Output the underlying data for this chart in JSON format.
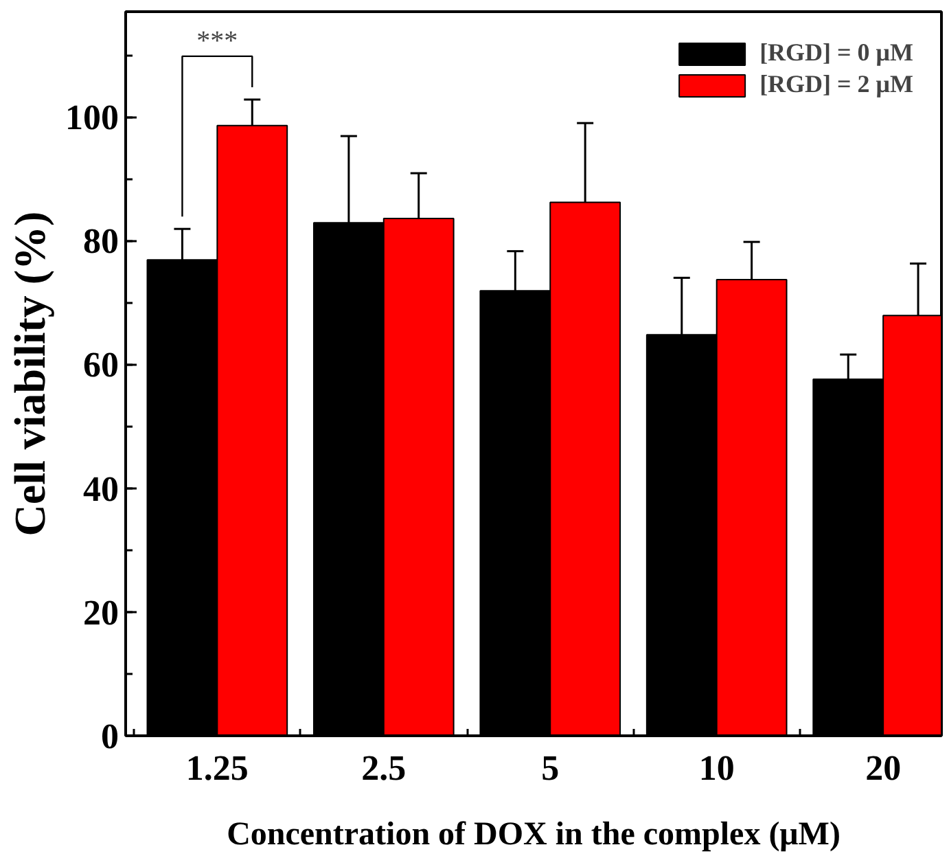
{
  "chart_data": {
    "type": "bar",
    "xlabel": "Concentration of DOX in the complex (μM)",
    "ylabel": "Cell viability (%)",
    "categories": [
      "1.25",
      "2.5",
      "5",
      "10",
      "20"
    ],
    "series": [
      {
        "name": "[RGD] = 0 μM",
        "color": "#000000",
        "values": [
          76.9,
          82.9,
          71.9,
          64.8,
          57.6
        ],
        "errors": [
          5.0,
          14.0,
          6.4,
          9.2,
          4.0
        ]
      },
      {
        "name": "[RGD] = 2 μM",
        "color": "#ff0000",
        "values": [
          98.6,
          83.6,
          86.2,
          73.7,
          67.9
        ],
        "errors": [
          4.2,
          7.3,
          12.8,
          6.1,
          8.4
        ]
      }
    ],
    "ylim": [
      0,
      117
    ],
    "yticks": [
      0,
      20,
      40,
      60,
      80,
      100
    ],
    "grid": false,
    "legend": "top right",
    "annotations": [
      "***"
    ]
  }
}
